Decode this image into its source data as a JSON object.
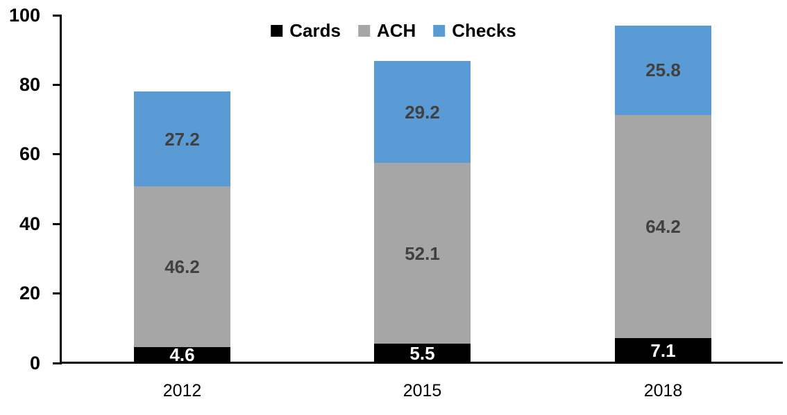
{
  "chart_data": {
    "type": "bar",
    "stacked": true,
    "title": "",
    "xlabel": "",
    "ylabel": "",
    "categories": [
      "2012",
      "2015",
      "2018"
    ],
    "series": [
      {
        "name": "Cards",
        "color": "#000000",
        "label_color": "#ffffff",
        "values": [
          4.6,
          5.5,
          7.1
        ]
      },
      {
        "name": "ACH",
        "color": "#A6A6A6",
        "label_color": "#404040",
        "values": [
          46.2,
          52.1,
          64.2
        ]
      },
      {
        "name": "Checks",
        "color": "#5B9BD5",
        "label_color": "#404040",
        "values": [
          27.2,
          29.2,
          25.8
        ]
      }
    ],
    "yticks": [
      0,
      20,
      40,
      60,
      80,
      100
    ],
    "ylim": [
      0,
      100
    ],
    "grid": false,
    "legend_position": "top-center",
    "axis_color": "#000000",
    "background_color": "#ffffff"
  }
}
